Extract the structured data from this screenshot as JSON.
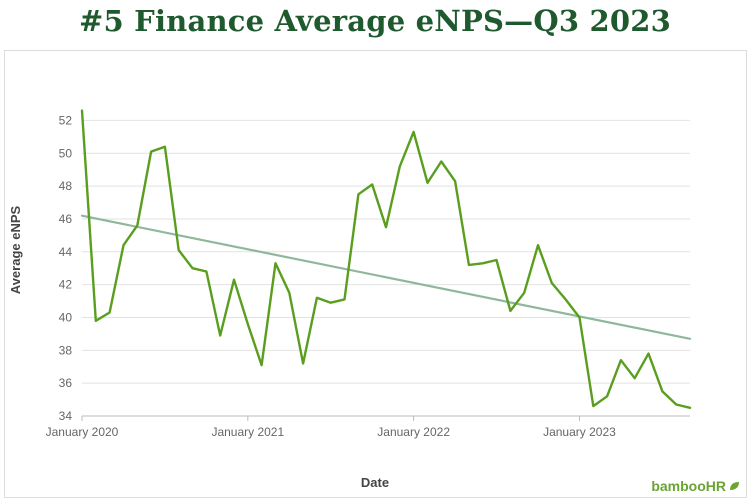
{
  "title": "#5 Finance Average eNPS—Q3 2023",
  "logo": {
    "text": "bambooHR",
    "icon": "leaf-icon",
    "color": "#6aa431"
  },
  "chart_data": {
    "type": "line",
    "title": "#5 Finance Average eNPS—Q3 2023",
    "xlabel": "Date",
    "ylabel": "Average eNPS",
    "ylim": [
      34,
      53
    ],
    "yticks": [
      34,
      36,
      38,
      40,
      42,
      44,
      46,
      48,
      50,
      52
    ],
    "xlim": [
      "2020-01",
      "2023-09"
    ],
    "xticks": [
      {
        "label": "January 2020",
        "value": "2020-01"
      },
      {
        "label": "January 2021",
        "value": "2021-01"
      },
      {
        "label": "January 2022",
        "value": "2022-01"
      },
      {
        "label": "January 2023",
        "value": "2023-01"
      }
    ],
    "grid": true,
    "series": [
      {
        "color": "#5a9e1f",
        "x": [
          "2020-01",
          "2020-02",
          "2020-03",
          "2020-04",
          "2020-05",
          "2020-06",
          "2020-07",
          "2020-08",
          "2020-09",
          "2020-10",
          "2020-11",
          "2020-12",
          "2021-01",
          "2021-02",
          "2021-03",
          "2021-04",
          "2021-05",
          "2021-06",
          "2021-07",
          "2021-08",
          "2021-09",
          "2021-10",
          "2021-11",
          "2021-12",
          "2022-01",
          "2022-02",
          "2022-03",
          "2022-04",
          "2022-05",
          "2022-06",
          "2022-07",
          "2022-08",
          "2022-09",
          "2022-10",
          "2022-11",
          "2022-12",
          "2023-01",
          "2023-02",
          "2023-03",
          "2023-04",
          "2023-05",
          "2023-06",
          "2023-07",
          "2023-08",
          "2023-09"
        ],
        "y": [
          52.6,
          39.8,
          40.3,
          44.4,
          45.6,
          50.1,
          50.4,
          44.1,
          43.0,
          42.8,
          38.9,
          42.3,
          39.6,
          37.1,
          43.3,
          41.5,
          37.2,
          41.2,
          40.9,
          41.1,
          47.5,
          48.1,
          45.5,
          49.2,
          51.3,
          48.2,
          49.5,
          48.3,
          43.2,
          43.3,
          43.5,
          40.4,
          41.5,
          44.4,
          42.1,
          41.1,
          40.0,
          34.6,
          35.2,
          37.4,
          36.3,
          37.8,
          35.5,
          34.7,
          34.5
        ]
      },
      {
        "color": "#8fb79a",
        "type": "trendline",
        "x": [
          "2020-01",
          "2023-09"
        ],
        "y": [
          46.2,
          38.7
        ]
      }
    ]
  }
}
